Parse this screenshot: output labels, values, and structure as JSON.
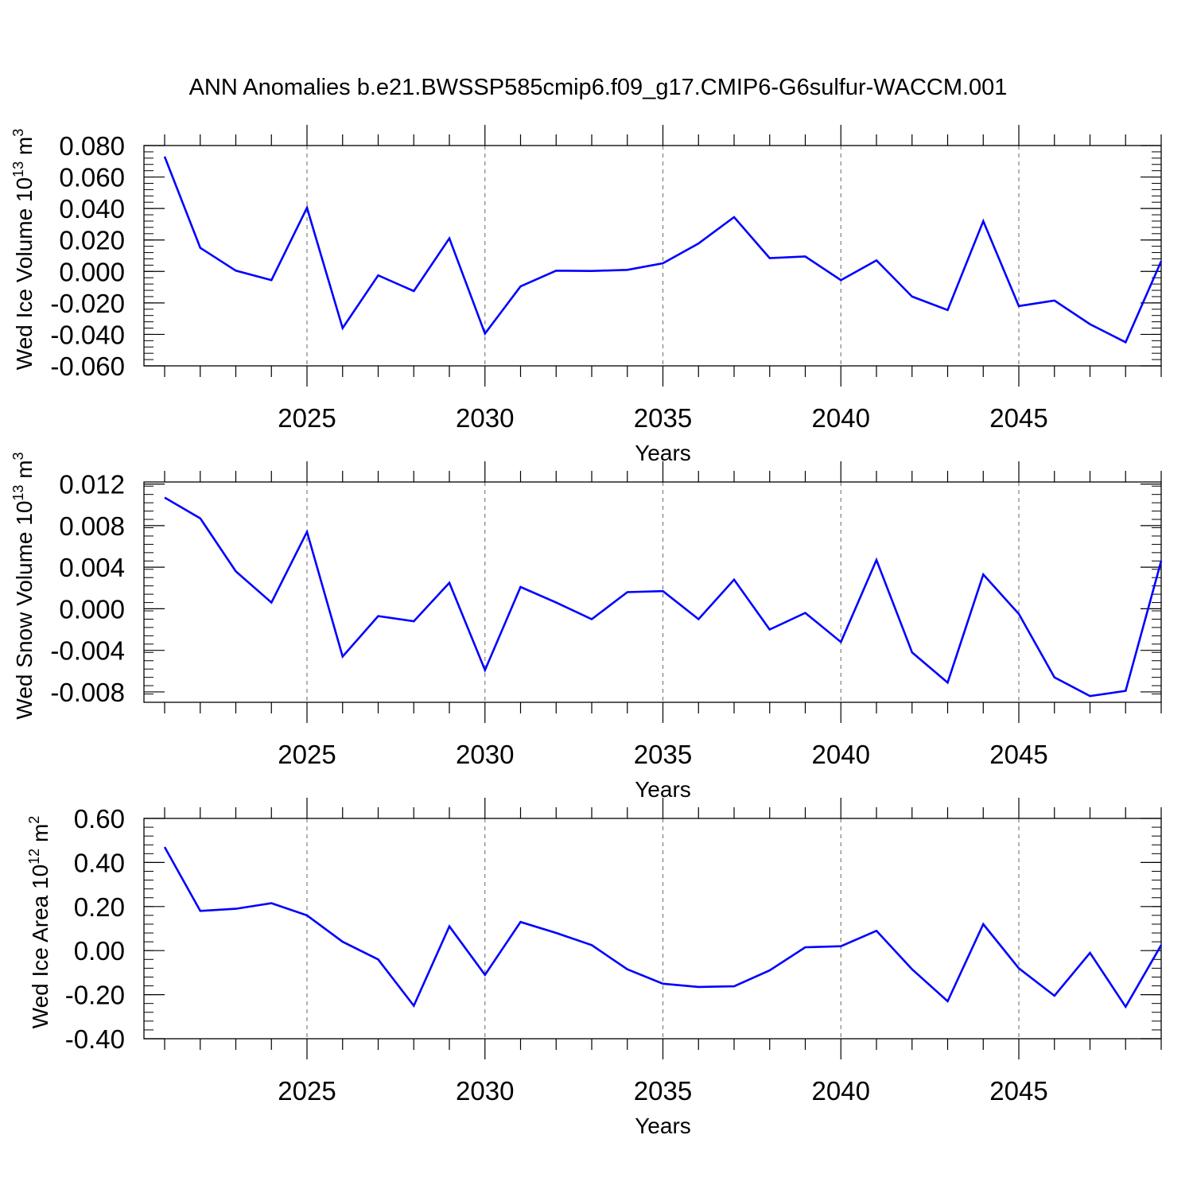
{
  "title": "ANN Anomalies b.e21.BWSSP585cmip6.f09_g17.CMIP6-G6sulfur-WACCM.001",
  "line_color": "#0000ff",
  "chart_data": [
    {
      "type": "line",
      "ylabel_main": "Wed Ice Volume 10",
      "ylabel_exp": "13",
      "ylabel_unit": " m",
      "ylabel_unit_exp": "3",
      "xlabel": "Years",
      "xlim": [
        2021,
        2049
      ],
      "ylim": [
        -0.06,
        0.08
      ],
      "yticks": [
        -0.06,
        -0.04,
        -0.02,
        0.0,
        0.02,
        0.04,
        0.06,
        0.08
      ],
      "ytick_labels": [
        "-0.060",
        "-0.040",
        "-0.020",
        "0.000",
        "0.020",
        "0.040",
        "0.060",
        "0.080"
      ],
      "xticks": [
        2025,
        2030,
        2035,
        2040,
        2045
      ],
      "xtick_labels": [
        "2025",
        "2030",
        "2035",
        "2040",
        "2045"
      ],
      "x": [
        2021,
        2022,
        2023,
        2024,
        2025,
        2026,
        2027,
        2028,
        2029,
        2030,
        2031,
        2032,
        2033,
        2034,
        2035,
        2036,
        2037,
        2038,
        2039,
        2040,
        2041,
        2042,
        2043,
        2044,
        2045,
        2046,
        2047,
        2048,
        2049
      ],
      "values": [
        0.073,
        0.015,
        0.0005,
        -0.0055,
        0.0405,
        -0.036,
        -0.0025,
        -0.0125,
        0.021,
        -0.0395,
        -0.0095,
        0.0005,
        0.0003,
        0.001,
        0.0052,
        0.0178,
        0.0345,
        0.0085,
        0.0095,
        -0.0055,
        0.007,
        -0.016,
        -0.0245,
        0.032,
        -0.022,
        -0.0185,
        -0.0335,
        -0.045,
        0.0065
      ]
    },
    {
      "type": "line",
      "ylabel_main": "Wed Snow Volume 10",
      "ylabel_exp": "13",
      "ylabel_unit": " m",
      "ylabel_unit_exp": "3",
      "xlabel": "Years",
      "xlim": [
        2021,
        2049
      ],
      "ylim": [
        -0.009,
        0.0122
      ],
      "yticks": [
        -0.008,
        -0.004,
        0.0,
        0.004,
        0.008,
        0.012
      ],
      "ytick_labels": [
        "-0.008",
        "-0.004",
        "0.000",
        "0.004",
        "0.008",
        "0.012"
      ],
      "xticks": [
        2025,
        2030,
        2035,
        2040,
        2045
      ],
      "xtick_labels": [
        "2025",
        "2030",
        "2035",
        "2040",
        "2045"
      ],
      "x": [
        2021,
        2022,
        2023,
        2024,
        2025,
        2026,
        2027,
        2028,
        2029,
        2030,
        2031,
        2032,
        2033,
        2034,
        2035,
        2036,
        2037,
        2038,
        2039,
        2040,
        2041,
        2042,
        2043,
        2044,
        2045,
        2046,
        2047,
        2048,
        2049
      ],
      "values": [
        0.0107,
        0.0087,
        0.0036,
        0.0006,
        0.0074,
        -0.0046,
        -0.0007,
        -0.0012,
        0.0025,
        -0.0059,
        0.0021,
        0.0006,
        -0.001,
        0.0016,
        0.0017,
        -0.001,
        0.0028,
        -0.002,
        -0.0004,
        -0.0032,
        0.0047,
        -0.0042,
        -0.0071,
        0.0033,
        -0.0005,
        -0.0066,
        -0.0084,
        -0.0079,
        0.0046
      ]
    },
    {
      "type": "line",
      "ylabel_main": "Wed Ice Area 10",
      "ylabel_exp": "12",
      "ylabel_unit": " m",
      "ylabel_unit_exp": "2",
      "xlabel": "Years",
      "xlim": [
        2021,
        2049
      ],
      "ylim": [
        -0.4,
        0.6
      ],
      "yticks": [
        -0.4,
        -0.2,
        0.0,
        0.2,
        0.4,
        0.6
      ],
      "ytick_labels": [
        "-0.40",
        "-0.20",
        "0.00",
        "0.20",
        "0.40",
        "0.60"
      ],
      "xticks": [
        2025,
        2030,
        2035,
        2040,
        2045
      ],
      "xtick_labels": [
        "2025",
        "2030",
        "2035",
        "2040",
        "2045"
      ],
      "x": [
        2021,
        2022,
        2023,
        2024,
        2025,
        2026,
        2027,
        2028,
        2029,
        2030,
        2031,
        2032,
        2033,
        2034,
        2035,
        2036,
        2037,
        2038,
        2039,
        2040,
        2041,
        2042,
        2043,
        2044,
        2045,
        2046,
        2047,
        2048,
        2049
      ],
      "values": [
        0.47,
        0.18,
        0.19,
        0.215,
        0.16,
        0.04,
        -0.04,
        -0.25,
        0.11,
        -0.11,
        0.13,
        0.08,
        0.025,
        -0.085,
        -0.15,
        -0.165,
        -0.162,
        -0.09,
        0.015,
        0.02,
        0.09,
        -0.085,
        -0.23,
        0.12,
        -0.08,
        -0.205,
        -0.01,
        -0.255,
        0.025
      ]
    }
  ]
}
